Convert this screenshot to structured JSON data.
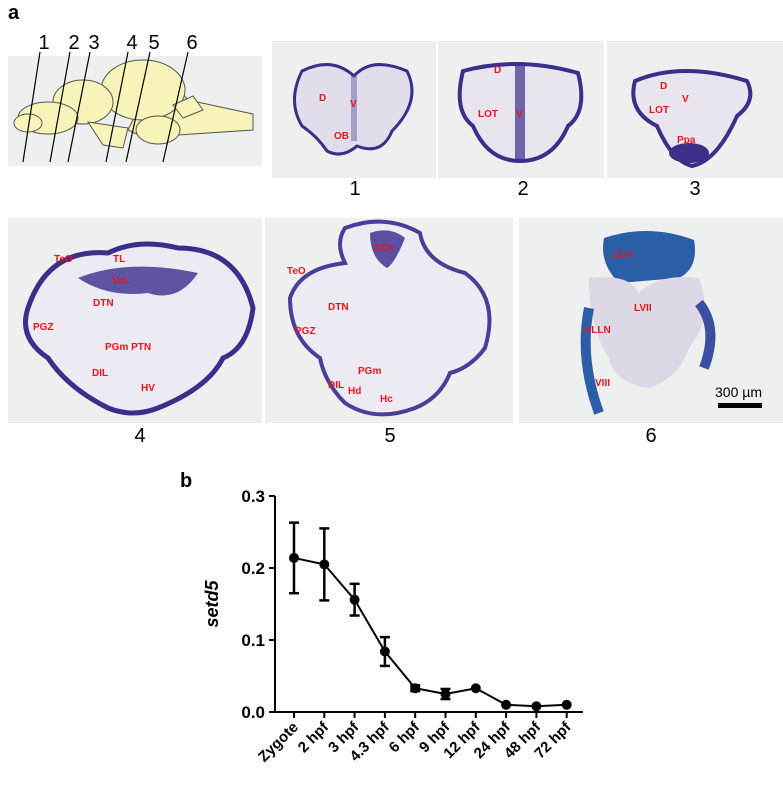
{
  "panel_a": {
    "letter": "a",
    "schematic_lines": [
      "1",
      "2",
      "3",
      "4",
      "5",
      "6"
    ],
    "sections": [
      {
        "number": "1",
        "labels": [
          "D",
          "V",
          "OB"
        ]
      },
      {
        "number": "2",
        "labels": [
          "D",
          "LOT",
          "V"
        ]
      },
      {
        "number": "3",
        "labels": [
          "D",
          "V",
          "LOT",
          "Ppa"
        ]
      },
      {
        "number": "4",
        "labels": [
          "TeO",
          "TL",
          "VaL",
          "DTN",
          "PGZ",
          "PGm PTN",
          "DIL",
          "HV"
        ]
      },
      {
        "number": "5",
        "labels": [
          "CCe",
          "TeO",
          "DTN",
          "PGZ",
          "PGm",
          "DIL",
          "Hd",
          "Hc"
        ]
      },
      {
        "number": "6",
        "labels": [
          "LCa",
          "LVII",
          "ALLN",
          "VIII"
        ]
      }
    ],
    "scale_bar": "300 µm",
    "colors": {
      "stain": "#3a2f8a",
      "label": "#e8141c",
      "brain": "#f8f3b8"
    }
  },
  "panel_b": {
    "letter": "b"
  },
  "chart_data": {
    "type": "line",
    "title": "",
    "xlabel": "",
    "ylabel": "setd5",
    "categories": [
      "Zygote",
      "2 hpf",
      "3 hpf",
      "4.3 hpf",
      "6 hpf",
      "9 hpf",
      "12 hpf",
      "24 hpf",
      "48 hpf",
      "72 hpf"
    ],
    "values": [
      0.214,
      0.205,
      0.156,
      0.084,
      0.033,
      0.025,
      0.033,
      0.01,
      0.008,
      0.01
    ],
    "error": [
      0.049,
      0.05,
      0.022,
      0.02,
      0.004,
      0.007,
      0.002,
      0.001,
      0.001,
      0.001
    ],
    "ylim": [
      0,
      0.3
    ],
    "yticks": [
      "0.0",
      "0.1",
      "0.2",
      "0.3"
    ],
    "grid": false
  }
}
